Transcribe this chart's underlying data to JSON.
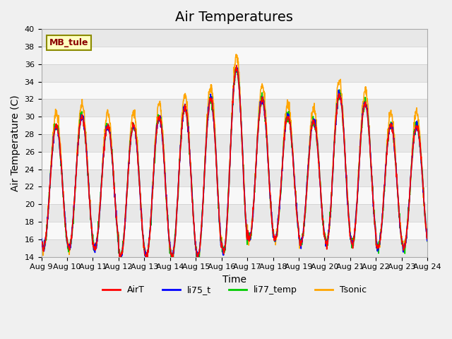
{
  "title": "Air Temperatures",
  "xlabel": "Time",
  "ylabel": "Air Temperature (C)",
  "ylim": [
    14,
    40
  ],
  "yticks": [
    14,
    16,
    18,
    20,
    22,
    24,
    26,
    28,
    30,
    32,
    34,
    36,
    38,
    40
  ],
  "x_labels": [
    "Aug 9",
    "Aug 10",
    "Aug 11",
    "Aug 12",
    "Aug 13",
    "Aug 14",
    "Aug 15",
    "Aug 16",
    "Aug 17",
    "Aug 18",
    "Aug 19",
    "Aug 20",
    "Aug 21",
    "Aug 22",
    "Aug 23",
    "Aug 24"
  ],
  "site_label": "MB_tule",
  "site_label_color": "#8B0000",
  "site_label_bg": "#FFFFC0",
  "site_label_border": "#8B8B00",
  "legend_entries": [
    "AirT",
    "li75_t",
    "li77_temp",
    "Tsonic"
  ],
  "line_colors": [
    "#FF0000",
    "#0000FF",
    "#00CC00",
    "#FFA500"
  ],
  "background_color": "#F0F0F0",
  "plot_bg_color": "#FFFFFF",
  "grid_color": "#CCCCCC",
  "title_fontsize": 14,
  "axis_label_fontsize": 10,
  "tick_fontsize": 8,
  "band_colors": [
    "#E8E8E8",
    "#F8F8F8"
  ]
}
